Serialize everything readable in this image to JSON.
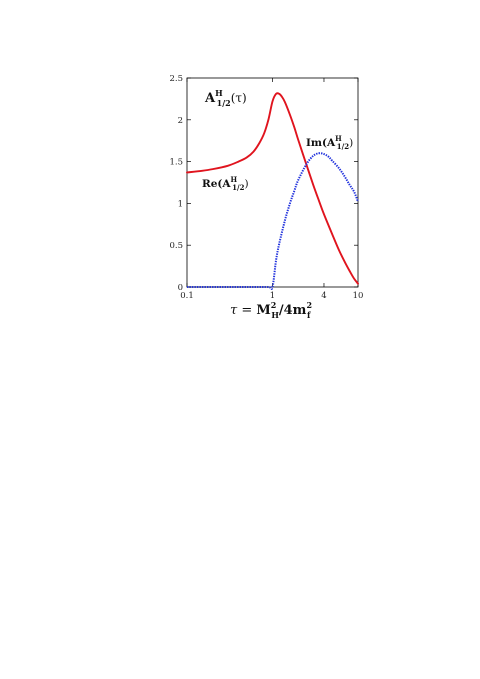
{
  "chart_data": {
    "type": "line",
    "title": "",
    "xlabel": "τ = M_H²/4m_f²",
    "ylabel": "",
    "x_scale": "log",
    "xlim": [
      0.1,
      10
    ],
    "ylim": [
      0,
      2.5
    ],
    "grid": false,
    "x_ticks": [
      {
        "value": 0.1,
        "label": "0.1"
      },
      {
        "value": 1,
        "label": "1"
      },
      {
        "value": 4,
        "label": "4"
      },
      {
        "value": 10,
        "label": "10"
      }
    ],
    "y_ticks": [
      {
        "value": 0,
        "label": "0"
      },
      {
        "value": 0.5,
        "label": "0.5"
      },
      {
        "value": 1,
        "label": "1"
      },
      {
        "value": 1.5,
        "label": "1.5"
      },
      {
        "value": 2,
        "label": "2"
      },
      {
        "value": 2.5,
        "label": "2.5"
      }
    ],
    "series": [
      {
        "name": "Re(A_1/2^H)",
        "color": "#e0141e",
        "style": "solid",
        "x": [
          0.1,
          0.15,
          0.2,
          0.3,
          0.4,
          0.5,
          0.6,
          0.7,
          0.8,
          0.9,
          1.0,
          1.1,
          1.2,
          1.3,
          1.4,
          1.6,
          1.8,
          2.0,
          2.5,
          3.0,
          3.5,
          4.0,
          5.0,
          6.0,
          7.0,
          8.0,
          9.0,
          10.0
        ],
        "y": [
          1.37,
          1.39,
          1.41,
          1.45,
          1.5,
          1.55,
          1.62,
          1.72,
          1.84,
          2.01,
          2.22,
          2.31,
          2.31,
          2.27,
          2.21,
          2.06,
          1.91,
          1.76,
          1.46,
          1.22,
          1.03,
          0.87,
          0.63,
          0.44,
          0.3,
          0.19,
          0.1,
          0.04
        ]
      },
      {
        "name": "Im(A_1/2^H)",
        "color": "#2233dd",
        "style": "dotted",
        "x": [
          0.1,
          0.3,
          0.6,
          0.9,
          1.0,
          1.1,
          1.2,
          1.4,
          1.6,
          1.8,
          2.0,
          2.5,
          3.0,
          3.5,
          4.0,
          4.5,
          5.0,
          6.0,
          7.0,
          8.0,
          9.0,
          10.0
        ],
        "y": [
          0,
          0,
          0,
          0,
          0,
          0.32,
          0.52,
          0.8,
          1.0,
          1.15,
          1.28,
          1.47,
          1.57,
          1.6,
          1.59,
          1.56,
          1.51,
          1.42,
          1.32,
          1.22,
          1.14,
          1.02
        ]
      }
    ],
    "annotations": [
      {
        "text_main": "A",
        "text_sup": "H",
        "text_sub": "1/2",
        "text_suffix": "(τ)"
      },
      {
        "text_main": "Re(A",
        "text_sup": "H",
        "text_sub": "1/2",
        "text_suffix": ")"
      },
      {
        "text_main": "Im(A",
        "text_sup": "H",
        "text_sub": "1/2",
        "text_suffix": ")"
      }
    ],
    "xlabel_parts": {
      "lhs": "τ = ",
      "m1": "M",
      "m1_sup": "2",
      "m1_sub": "H",
      "mid": "/4m",
      "m2_sup": "2",
      "m2_sub": "f"
    }
  }
}
